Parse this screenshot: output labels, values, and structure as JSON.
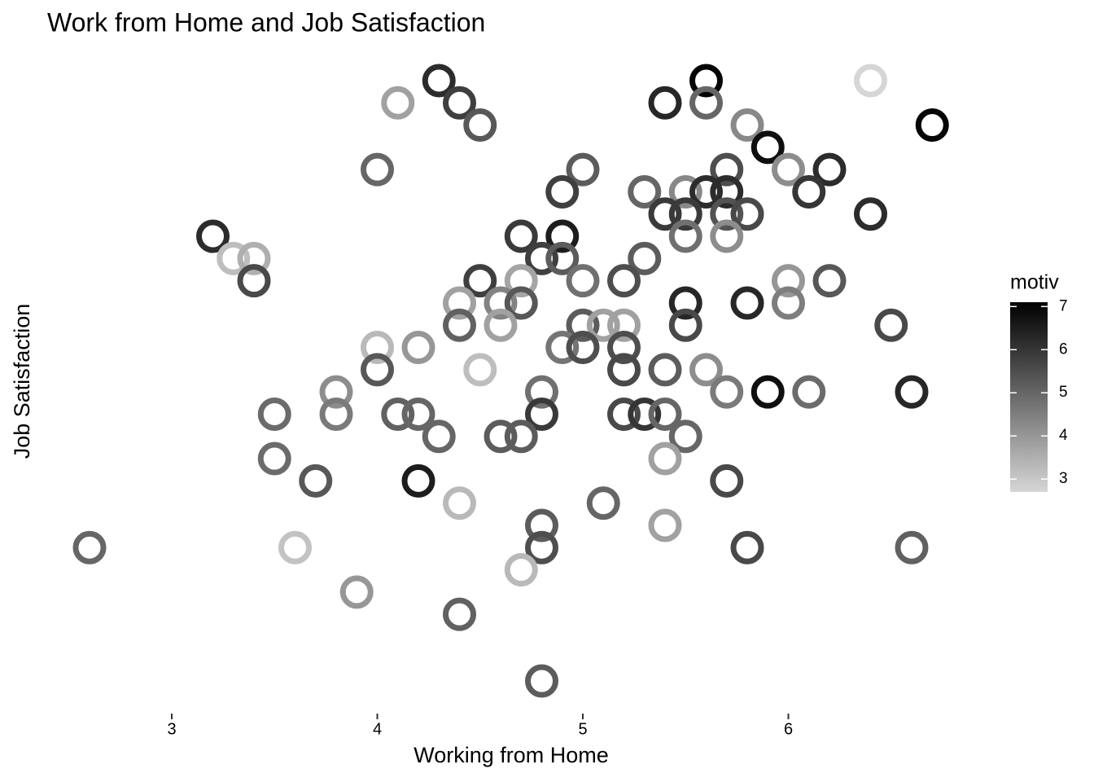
{
  "chart_data": {
    "type": "scatter",
    "title": "Work from Home and Job Satisfaction",
    "x_label": "Working from Home",
    "y_label": "Job Satisfaction",
    "x": [
      4.3,
      5.6,
      6.4,
      4.1,
      4.4,
      5.4,
      5.6,
      4.5,
      5.8,
      6.7,
      5.9,
      4.0,
      5.0,
      5.7,
      6.0,
      6.2,
      4.9,
      5.3,
      5.5,
      5.6,
      5.7,
      6.1,
      5.4,
      5.5,
      5.7,
      5.8,
      6.4,
      3.2,
      4.7,
      4.9,
      5.5,
      5.7,
      3.3,
      3.4,
      4.8,
      4.9,
      5.3,
      3.4,
      4.5,
      4.7,
      5.0,
      5.2,
      6.0,
      6.2,
      4.4,
      4.6,
      4.7,
      5.5,
      5.8,
      6.0,
      4.4,
      4.6,
      5.0,
      5.1,
      5.2,
      5.5,
      6.5,
      4.0,
      4.2,
      4.9,
      5.0,
      5.2,
      4.0,
      4.5,
      5.2,
      5.4,
      5.6,
      3.8,
      4.8,
      5.7,
      5.9,
      6.1,
      6.6,
      3.5,
      3.8,
      4.1,
      4.2,
      4.8,
      5.2,
      5.3,
      5.4,
      4.3,
      4.6,
      4.7,
      5.5,
      3.5,
      5.4,
      3.7,
      4.2,
      5.7,
      4.4,
      5.1,
      4.8,
      5.4,
      2.6,
      3.6,
      4.8,
      5.8,
      6.6,
      4.7,
      3.9,
      4.4,
      4.8
    ],
    "values": [
      5.7,
      5.7,
      5.7,
      5.6,
      5.6,
      5.6,
      5.6,
      5.5,
      5.5,
      5.5,
      5.4,
      5.3,
      5.3,
      5.3,
      5.3,
      5.3,
      5.2,
      5.2,
      5.2,
      5.2,
      5.2,
      5.2,
      5.1,
      5.1,
      5.1,
      5.1,
      5.1,
      5.0,
      5.0,
      5.0,
      5.0,
      5.0,
      4.9,
      4.9,
      4.9,
      4.9,
      4.9,
      4.8,
      4.8,
      4.8,
      4.8,
      4.8,
      4.8,
      4.8,
      4.7,
      4.7,
      4.7,
      4.7,
      4.7,
      4.7,
      4.6,
      4.6,
      4.6,
      4.6,
      4.6,
      4.6,
      4.6,
      4.5,
      4.5,
      4.5,
      4.5,
      4.5,
      4.4,
      4.4,
      4.4,
      4.4,
      4.4,
      4.3,
      4.3,
      4.3,
      4.3,
      4.3,
      4.3,
      4.2,
      4.2,
      4.2,
      4.2,
      4.2,
      4.2,
      4.2,
      4.2,
      4.1,
      4.1,
      4.1,
      4.1,
      4.0,
      4.0,
      3.9,
      3.9,
      3.9,
      3.8,
      3.8,
      3.7,
      3.7,
      3.6,
      3.6,
      3.6,
      3.6,
      3.6,
      3.5,
      3.4,
      3.3,
      3.0
    ],
    "color_values": [
      6.2,
      7.0,
      2.7,
      3.8,
      5.8,
      6.3,
      5.0,
      5.3,
      4.3,
      7.0,
      6.8,
      5.0,
      5.2,
      5.5,
      4.2,
      6.2,
      5.8,
      5.0,
      4.3,
      6.2,
      6.2,
      6.0,
      5.9,
      5.9,
      5.4,
      5.6,
      6.2,
      6.2,
      5.9,
      6.5,
      4.8,
      4.2,
      3.2,
      3.5,
      5.8,
      5.2,
      5.2,
      5.6,
      5.8,
      3.7,
      4.8,
      5.5,
      4.0,
      5.3,
      3.8,
      4.4,
      5.3,
      6.3,
      6.3,
      4.5,
      5.1,
      3.8,
      5.2,
      3.8,
      3.8,
      5.6,
      5.6,
      3.3,
      4.0,
      4.7,
      5.5,
      5.5,
      5.3,
      3.2,
      5.6,
      5.2,
      4.2,
      4.2,
      4.8,
      4.6,
      6.8,
      4.9,
      6.3,
      4.9,
      4.6,
      5.1,
      5.0,
      5.9,
      5.6,
      6.0,
      5.0,
      5.0,
      5.2,
      5.2,
      5.0,
      4.9,
      3.8,
      5.3,
      6.5,
      5.6,
      3.3,
      5.0,
      5.2,
      3.8,
      5.0,
      3.1,
      5.5,
      5.6,
      5.1,
      3.3,
      4.0,
      5.1,
      5.2
    ],
    "xlim": [
      2.4,
      6.8
    ],
    "ylim": [
      2.85,
      5.85
    ],
    "xticks": [
      3,
      4,
      5,
      6
    ],
    "colorbar": {
      "title": "motiv",
      "lim": [
        2.7,
        7.1
      ],
      "ticks": [
        3,
        4,
        5,
        6,
        7
      ],
      "colors": [
        "#d6d6d6",
        "#000000"
      ]
    }
  }
}
